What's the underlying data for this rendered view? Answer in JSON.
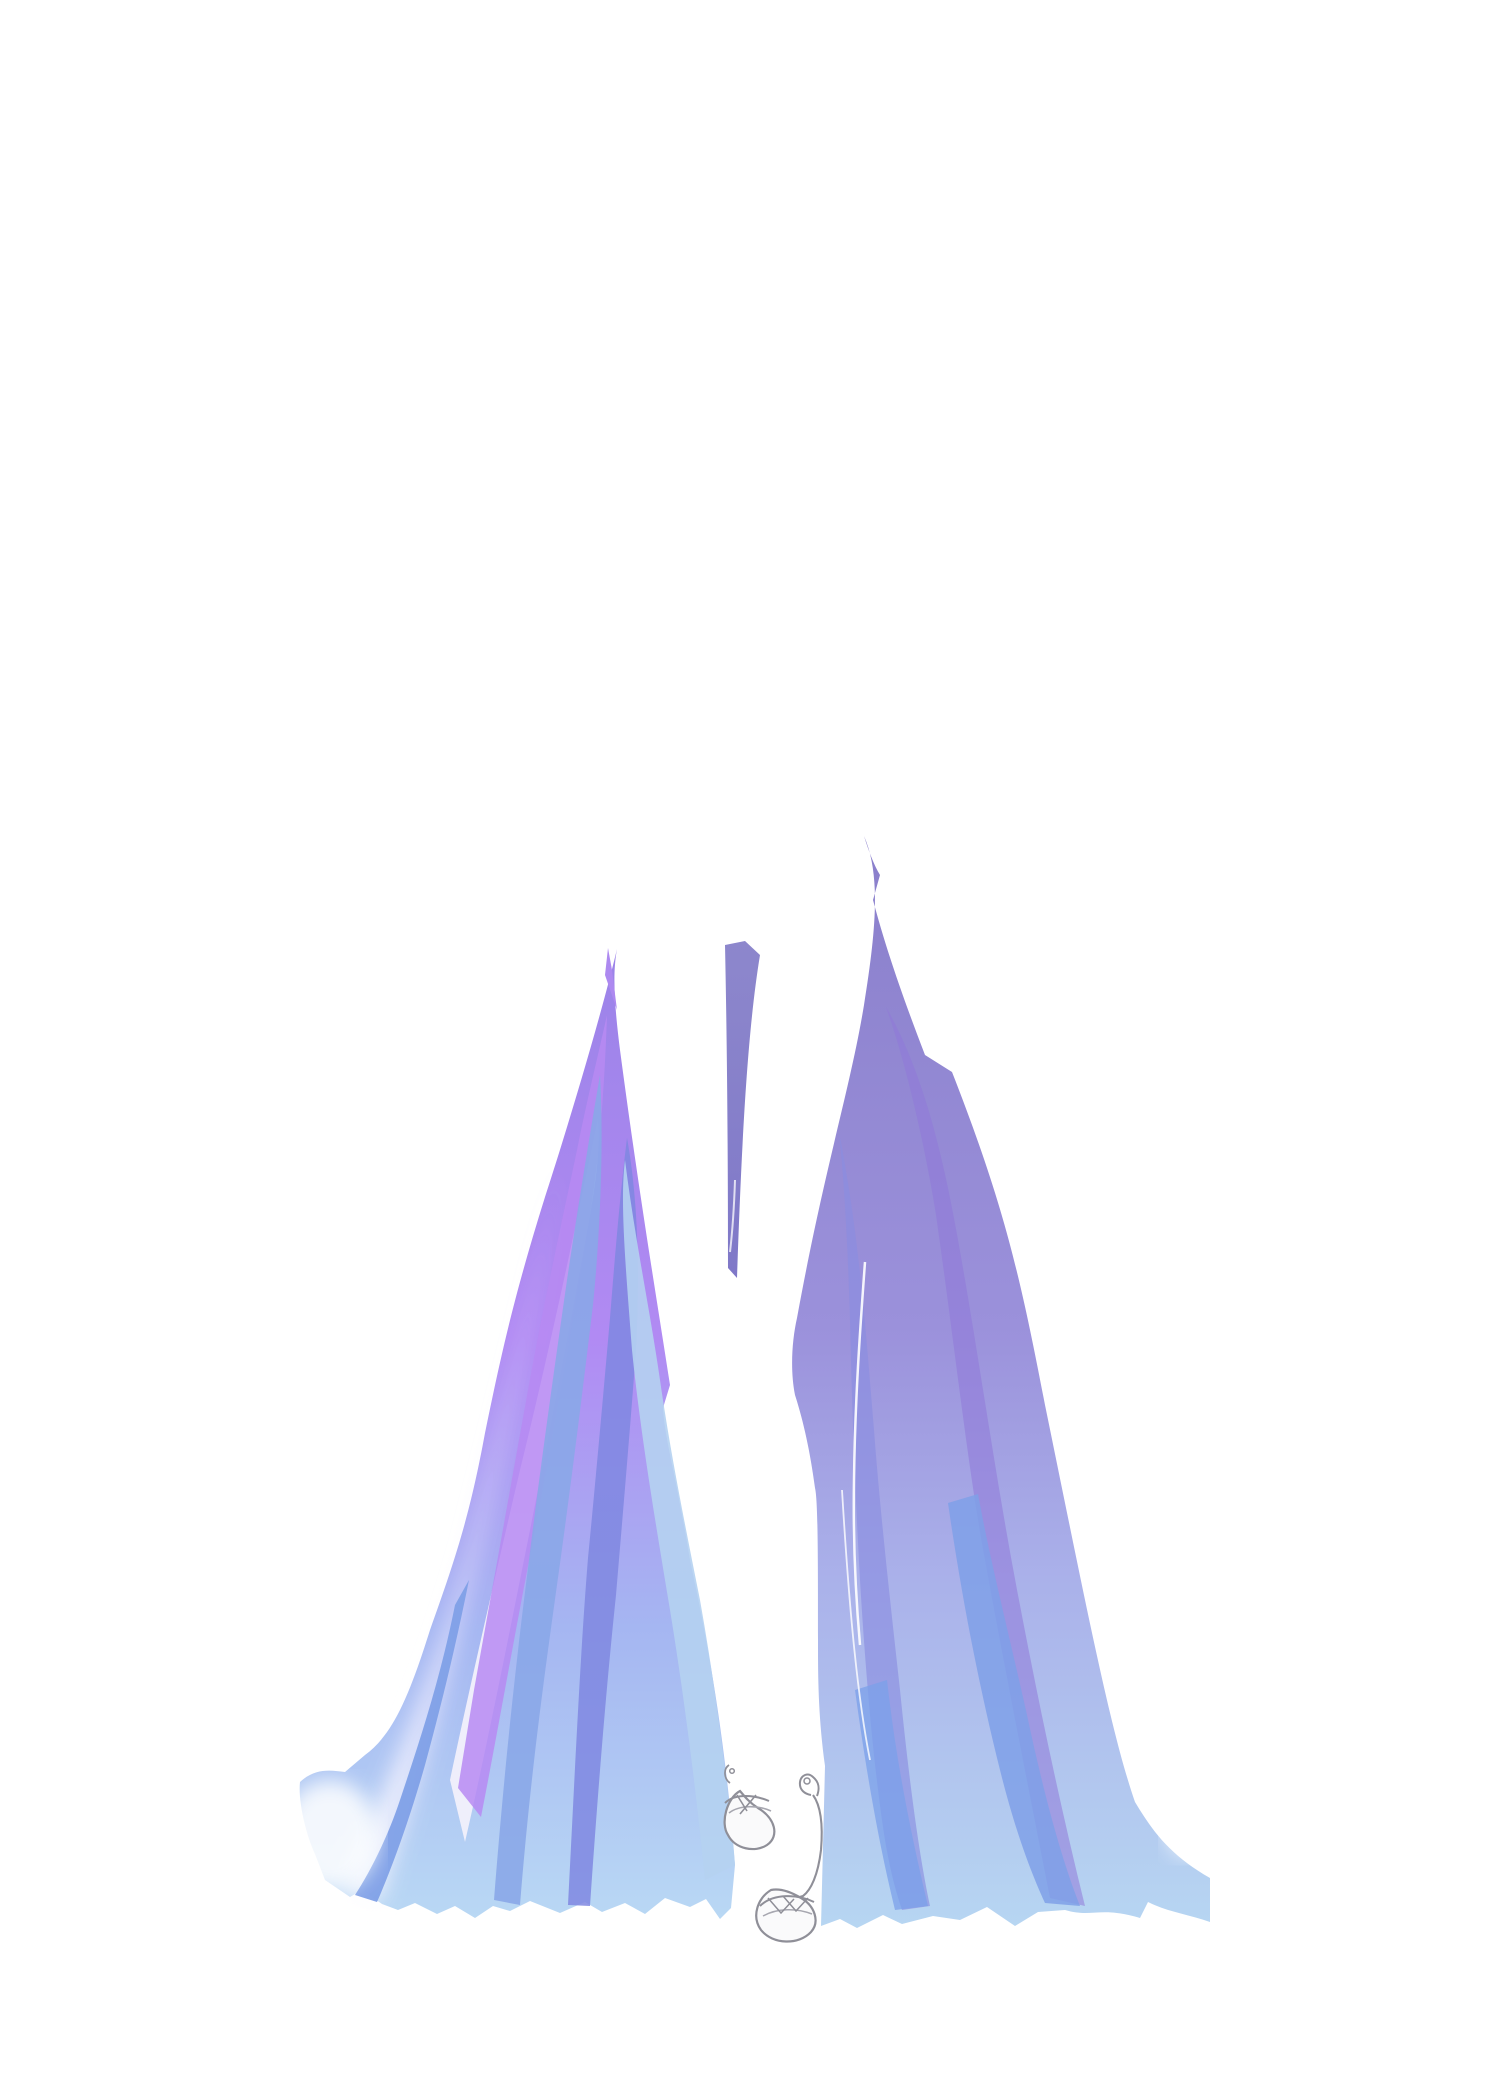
{
  "colors": {
    "background": "#ffffff",
    "skirt_top": "#8a7fcb",
    "skirt_mid": "#a69be3",
    "skirt_bottom": "#b7d6f2",
    "left_panel_top": "#a57cf0",
    "left_panel_bottom": "#97c6f6",
    "stripe_blue": "#7fa0e7",
    "stripe_purple": "#8d74d8",
    "lining_white": "#f3f0fb",
    "shoe_outline": "#8f8f98",
    "shoe_fill": "#f8f8fb"
  },
  "items": {
    "gown": "flowing-gown",
    "shoes": "strappy-heeled-sandals"
  }
}
